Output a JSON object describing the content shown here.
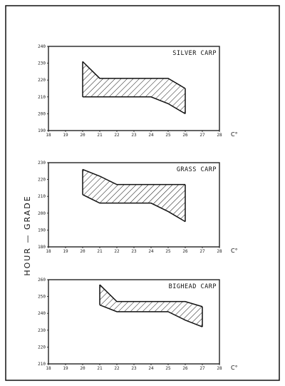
{
  "figure": {
    "y_axis_label": "HOUR — GRADE"
  },
  "chart_data": [
    {
      "type": "area",
      "title": "SILVER CARP",
      "xlabel": "C°",
      "ylabel": "",
      "x_ticks": [
        18,
        19,
        20,
        21,
        22,
        23,
        24,
        25,
        26,
        27,
        28
      ],
      "y_ticks": [
        190,
        200,
        210,
        220,
        230,
        240
      ],
      "xlim": [
        18,
        28
      ],
      "ylim": [
        190,
        240
      ],
      "upper": {
        "x": [
          20,
          21,
          22,
          23,
          24,
          25,
          26
        ],
        "y": [
          231,
          221,
          221,
          221,
          221,
          221,
          215
        ]
      },
      "lower": {
        "x": [
          20,
          21,
          22,
          23,
          24,
          25,
          26
        ],
        "y": [
          210,
          210,
          210,
          210,
          210,
          206,
          200
        ]
      }
    },
    {
      "type": "area",
      "title": "GRASS CARP",
      "xlabel": "C°",
      "ylabel": "",
      "x_ticks": [
        18,
        19,
        20,
        21,
        22,
        23,
        24,
        25,
        26,
        27,
        28
      ],
      "y_ticks": [
        180,
        190,
        200,
        210,
        220,
        230
      ],
      "xlim": [
        18,
        28
      ],
      "ylim": [
        180,
        230
      ],
      "upper": {
        "x": [
          20,
          21,
          22,
          23,
          24,
          25,
          26
        ],
        "y": [
          226,
          222,
          217,
          217,
          217,
          217,
          217
        ]
      },
      "lower": {
        "x": [
          20,
          21,
          22,
          23,
          24,
          25,
          26
        ],
        "y": [
          211,
          206,
          206,
          206,
          206,
          201,
          195
        ]
      }
    },
    {
      "type": "area",
      "title": "BIGHEAD CARP",
      "xlabel": "C°",
      "ylabel": "",
      "x_ticks": [
        18,
        19,
        20,
        21,
        22,
        23,
        24,
        25,
        26,
        27,
        28
      ],
      "y_ticks": [
        210,
        220,
        230,
        240,
        250,
        260
      ],
      "xlim": [
        18,
        28
      ],
      "ylim": [
        210,
        260
      ],
      "upper": {
        "x": [
          21,
          22,
          23,
          24,
          25,
          26,
          27
        ],
        "y": [
          257,
          247,
          247,
          247,
          247,
          247,
          244
        ]
      },
      "lower": {
        "x": [
          21,
          22,
          23,
          24,
          25,
          26,
          27
        ],
        "y": [
          245,
          241,
          241,
          241,
          241,
          236,
          232
        ]
      }
    }
  ]
}
